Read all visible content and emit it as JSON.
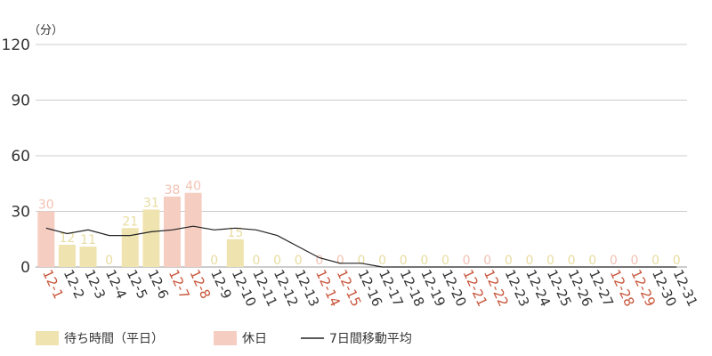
{
  "chart_data": {
    "type": "bar",
    "unit_label": "（分）",
    "categories": [
      "12-1",
      "12-2",
      "12-3",
      "12-4",
      "12-5",
      "12-6",
      "12-7",
      "12-8",
      "12-9",
      "12-10",
      "12-11",
      "12-12",
      "12-13",
      "12-14",
      "12-15",
      "12-16",
      "12-17",
      "12-18",
      "12-19",
      "12-20",
      "12-21",
      "12-22",
      "12-23",
      "12-24",
      "12-25",
      "12-26",
      "12-27",
      "12-28",
      "12-29",
      "12-30",
      "12-31"
    ],
    "holidays": [
      "12-1",
      "12-7",
      "12-8",
      "12-14",
      "12-15",
      "12-21",
      "12-22",
      "12-28",
      "12-29"
    ],
    "values": [
      30,
      12,
      11,
      0,
      21,
      31,
      38,
      40,
      0,
      15,
      0,
      0,
      0,
      0,
      0,
      0,
      0,
      0,
      0,
      0,
      0,
      0,
      0,
      0,
      0,
      0,
      0,
      0,
      0,
      0,
      0
    ],
    "moving_average": [
      21,
      18,
      20,
      17,
      17,
      19,
      20,
      22,
      20,
      21,
      20,
      17,
      11,
      5,
      2,
      2,
      0,
      0,
      0,
      0,
      0,
      0,
      0,
      0,
      0,
      0,
      0,
      0,
      0,
      0,
      0
    ],
    "yticks": [
      0,
      30,
      60,
      90,
      120
    ],
    "ylim": [
      0,
      120
    ],
    "grid": true,
    "legend_position": "bottom-left",
    "legend": [
      {
        "label": "待ち時間（平日）",
        "kind": "bar-weekday"
      },
      {
        "label": "休日",
        "kind": "bar-holiday"
      },
      {
        "label": "7日間移動平均",
        "kind": "line"
      }
    ],
    "colors": {
      "weekday_bar": "#efe4b0",
      "weekday_label": "#e8dca0",
      "holiday_bar": "#f5cdc1",
      "holiday_label": "#f2c2b4",
      "holiday_tick": "#c8553a",
      "weekday_tick": "#333333",
      "line": "#222222",
      "grid": "#cccccc",
      "axis": "#999999"
    }
  }
}
